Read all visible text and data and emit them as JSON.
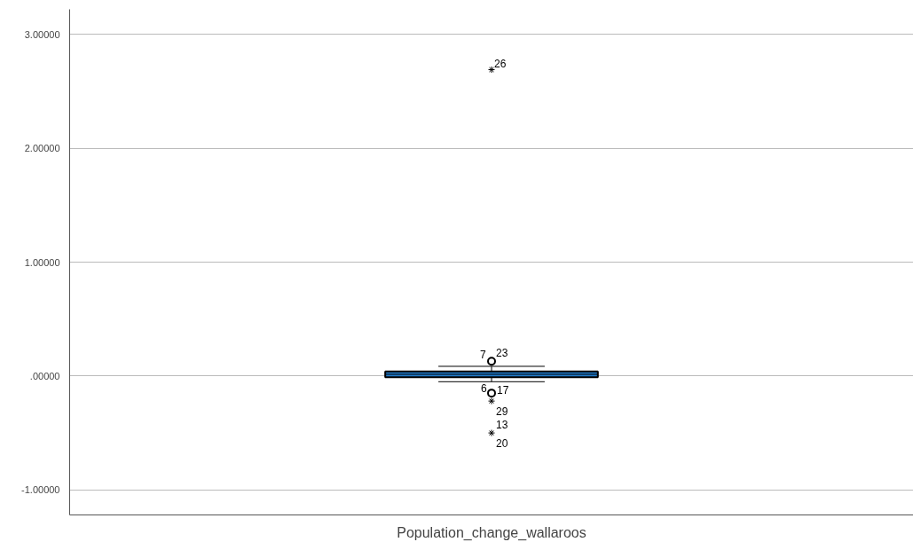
{
  "chart_data": {
    "type": "box",
    "categories": [
      "Population_change_wallaroos"
    ],
    "series": [
      {
        "color": "#1f7bcb",
        "boxes": [
          {
            "low": -0.05,
            "q1": -0.01,
            "median": 0.015,
            "q3": 0.04,
            "high": 0.085,
            "outliers": [
              2.69,
              0.13,
              -0.15,
              -0.22,
              -0.5
            ]
          }
        ]
      }
    ],
    "ylim": [
      -1.22,
      3.22
    ],
    "yticks": [
      {
        "value": -1,
        "label": "-1.00000"
      },
      {
        "value": 0,
        "label": ".00000"
      },
      {
        "value": 1,
        "label": "1.00000"
      },
      {
        "value": 2,
        "label": "2.00000"
      },
      {
        "value": 3,
        "label": "3.00000"
      }
    ],
    "grid": "y",
    "annotations": [
      "26",
      "7",
      "23",
      "17",
      "6",
      "29",
      "13",
      "20"
    ]
  }
}
